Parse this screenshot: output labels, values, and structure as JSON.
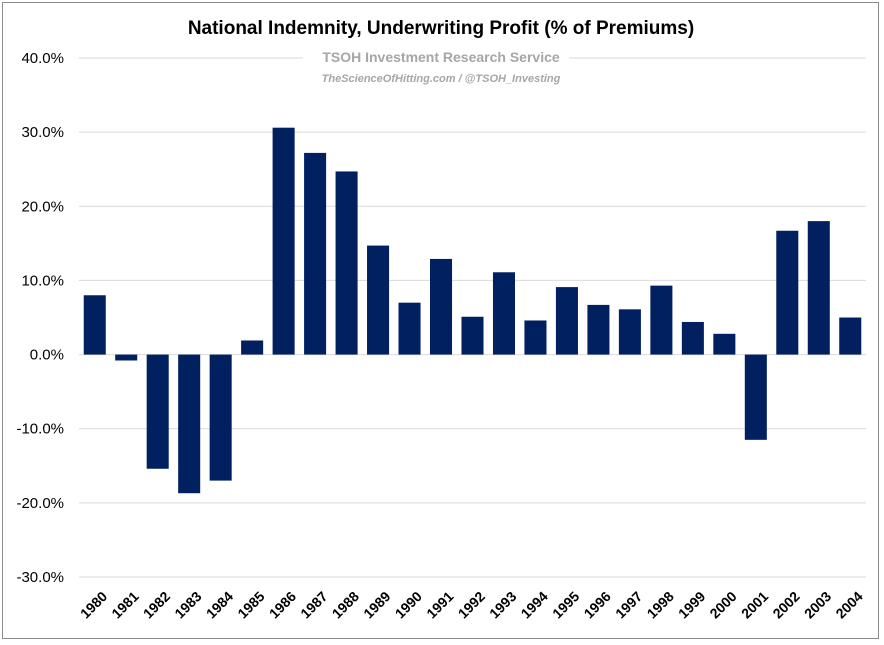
{
  "chart_data": {
    "type": "bar",
    "title": "National Indemnity, Underwriting Profit (% of Premiums)",
    "watermark_line1": "TSOH Investment Research Service",
    "watermark_line2": "TheScienceOfHitting.com / @TSOH_Investing",
    "xlabel": "",
    "ylabel": "",
    "ylim": [
      -30,
      40
    ],
    "yticks": [
      -30,
      -20,
      -10,
      0,
      10,
      20,
      30,
      40
    ],
    "ytick_labels": [
      "-30.0%",
      "-20.0%",
      "-10.0%",
      "0.0%",
      "10.0%",
      "20.0%",
      "30.0%",
      "40.0%"
    ],
    "grid": true,
    "categories": [
      "1980",
      "1981",
      "1982",
      "1983",
      "1984",
      "1985",
      "1986",
      "1987",
      "1988",
      "1989",
      "1990",
      "1991",
      "1992",
      "1993",
      "1994",
      "1995",
      "1996",
      "1997",
      "1998",
      "1999",
      "2000",
      "2001",
      "2002",
      "2003",
      "2004"
    ],
    "values": [
      8.0,
      -0.8,
      -15.4,
      -18.7,
      -17.0,
      1.9,
      30.6,
      27.2,
      24.7,
      14.7,
      7.0,
      12.9,
      5.1,
      11.1,
      4.6,
      9.1,
      6.7,
      6.1,
      9.3,
      4.4,
      2.8,
      -11.5,
      16.7,
      18.0,
      5.0
    ],
    "bar_color": "#002060",
    "grid_color": "#d9d9d9"
  }
}
